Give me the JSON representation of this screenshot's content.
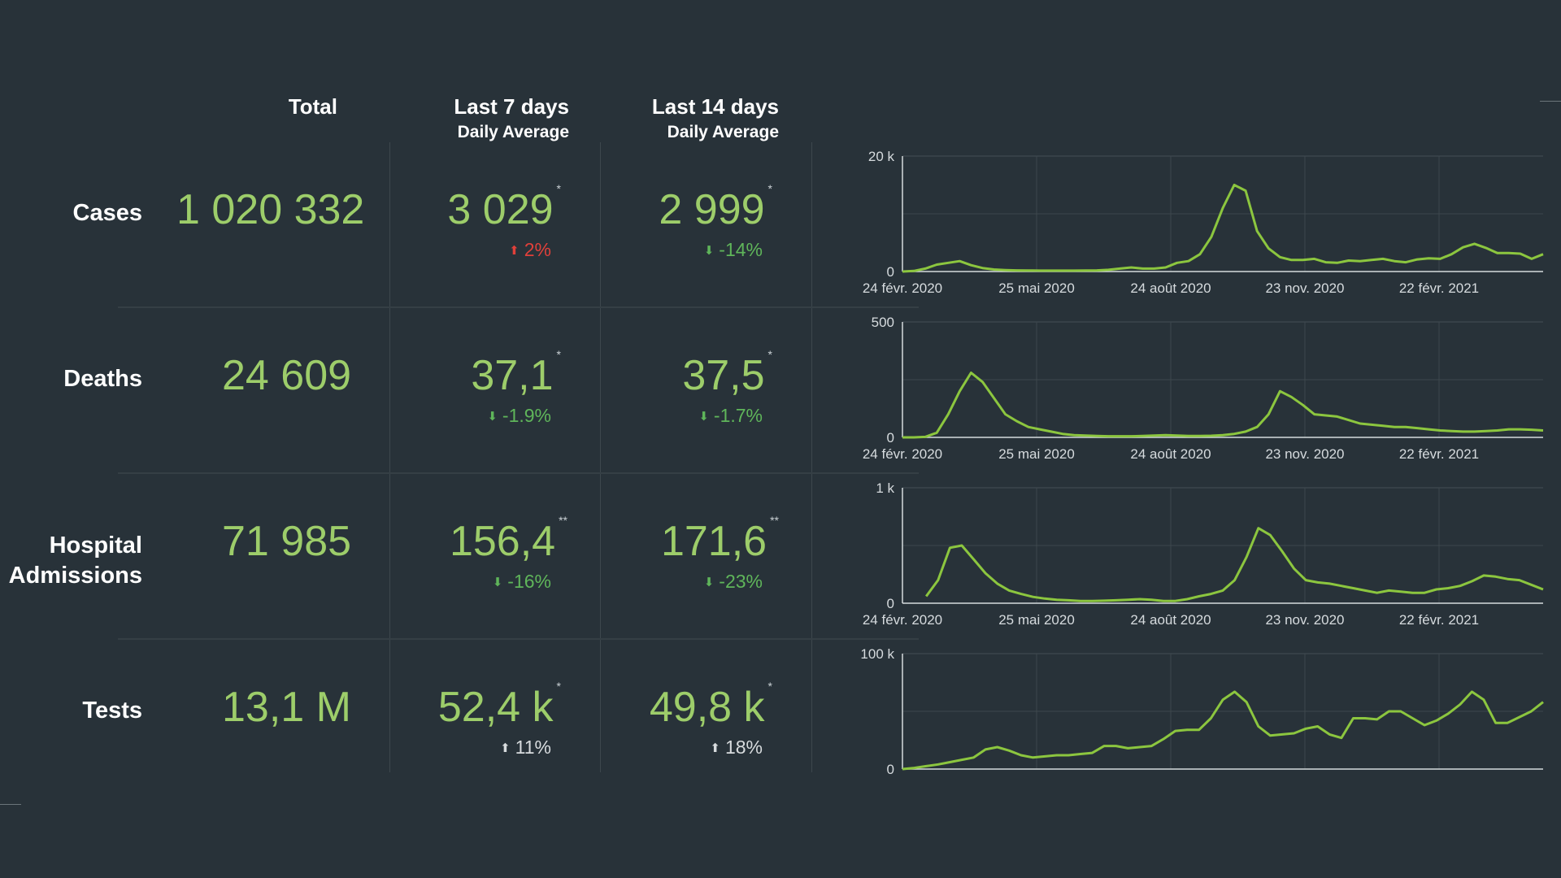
{
  "headers": {
    "total": "Total",
    "last7": "Last 7 days",
    "last7_sub": "Daily Average",
    "last14": "Last 14 days",
    "last14_sub": "Daily Average"
  },
  "rows": [
    {
      "label": "Cases",
      "total": "1 020 332",
      "avg7": "3 029",
      "avg7_star": "*",
      "chg7": "2%",
      "chg7_dir": "up",
      "chg7_color": "#e0403a",
      "avg14": "2 999",
      "avg14_star": "*",
      "chg14": "-14%",
      "chg14_dir": "down",
      "chg14_color": "#5fb55a"
    },
    {
      "label": "Deaths",
      "total": "24 609",
      "avg7": "37,1",
      "avg7_star": "*",
      "chg7": "-1.9%",
      "chg7_dir": "down",
      "chg7_color": "#5fb55a",
      "avg14": "37,5",
      "avg14_star": "*",
      "chg14": "-1.7%",
      "chg14_dir": "down",
      "chg14_color": "#5fb55a"
    },
    {
      "label_line1": "Hospital",
      "label_line2": "Admissions",
      "total": "71 985",
      "avg7": "156,4",
      "avg7_star": "**",
      "chg7": "-16%",
      "chg7_dir": "down",
      "chg7_color": "#5fb55a",
      "avg14": "171,6",
      "avg14_star": "**",
      "chg14": "-23%",
      "chg14_dir": "down",
      "chg14_color": "#5fb55a"
    },
    {
      "label": "Tests",
      "total": "13,1 M",
      "avg7": "52,4 k",
      "avg7_star": "*",
      "chg7": "11%",
      "chg7_dir": "up",
      "chg7_color": "#d8dcde",
      "avg14": "49,8 k",
      "avg14_star": "*",
      "chg14": "18%",
      "chg14_dir": "up",
      "chg14_color": "#d8dcde"
    }
  ],
  "icons": {
    "up": "arrow-up-icon",
    "down": "arrow-down-icon"
  },
  "colors": {
    "background": "#283239",
    "line": "#8cc63f",
    "value": "#9dcd6a"
  },
  "chart_data": [
    {
      "type": "line",
      "ylim": [
        0,
        20000
      ],
      "yticks": [
        "20 k",
        "0"
      ],
      "xticks": [
        "24 févr. 2020",
        "25 mai 2020",
        "24 août 2020",
        "23 nov. 2020",
        "22 févr. 2021"
      ],
      "series": [
        {
          "values": [
            0,
            100,
            500,
            1200,
            1500,
            1800,
            1100,
            600,
            350,
            250,
            200,
            180,
            150,
            150,
            150,
            150,
            180,
            200,
            300,
            500,
            700,
            500,
            500,
            700,
            1500,
            1800,
            3000,
            6000,
            11000,
            15000,
            14000,
            7000,
            4000,
            2500,
            2000,
            2000,
            2200,
            1600,
            1500,
            1900,
            1800,
            2000,
            2200,
            1800,
            1600,
            2100,
            2300,
            2200,
            3000,
            4200,
            4800,
            4100,
            3200,
            3200,
            3100,
            2200,
            3000
          ]
        }
      ]
    },
    {
      "type": "line",
      "ylim": [
        0,
        500
      ],
      "yticks": [
        "500",
        "0"
      ],
      "xticks": [
        "24 févr. 2020",
        "25 mai 2020",
        "24 août 2020",
        "23 nov. 2020",
        "22 févr. 2021"
      ],
      "series": [
        {
          "values": [
            0,
            0,
            2,
            20,
            100,
            200,
            280,
            240,
            170,
            100,
            70,
            45,
            35,
            25,
            15,
            10,
            8,
            6,
            5,
            5,
            5,
            6,
            8,
            10,
            8,
            6,
            6,
            7,
            10,
            15,
            25,
            45,
            100,
            200,
            175,
            140,
            100,
            95,
            90,
            75,
            60,
            55,
            50,
            45,
            45,
            40,
            35,
            30,
            27,
            25,
            25,
            27,
            30,
            35,
            35,
            33,
            30
          ]
        }
      ]
    },
    {
      "type": "line",
      "ylim": [
        0,
        1000
      ],
      "yticks": [
        "1 k",
        "0"
      ],
      "xticks": [
        "24 févr. 2020",
        "25 mai 2020",
        "24 août 2020",
        "23 nov. 2020",
        "22 févr. 2021"
      ],
      "series": [
        {
          "values": [
            null,
            null,
            60,
            200,
            480,
            500,
            380,
            260,
            170,
            110,
            80,
            55,
            40,
            30,
            25,
            20,
            20,
            22,
            25,
            30,
            35,
            30,
            20,
            20,
            35,
            60,
            80,
            110,
            200,
            400,
            650,
            590,
            450,
            300,
            200,
            180,
            170,
            150,
            130,
            110,
            90,
            110,
            100,
            90,
            90,
            120,
            130,
            150,
            190,
            240,
            230,
            210,
            200,
            160,
            120
          ]
        }
      ]
    }
  ],
  "chart_tests": {
    "type": "line",
    "ylim": [
      0,
      100000
    ],
    "yticks": [
      "100 k",
      "0"
    ],
    "series": [
      {
        "values": [
          0,
          1000,
          2500,
          4000,
          6000,
          8000,
          10000,
          17000,
          19000,
          16000,
          12000,
          10000,
          11000,
          12000,
          12000,
          13000,
          14000,
          20000,
          20000,
          18000,
          19000,
          20000,
          26000,
          33000,
          34000,
          34000,
          44000,
          60000,
          67000,
          58000,
          37000,
          29000,
          30000,
          31000,
          35000,
          37000,
          30000,
          27000,
          44000,
          44000,
          43000,
          50000,
          50000,
          44000,
          38000,
          42000,
          48000,
          56000,
          67000,
          60000,
          40000,
          40000,
          45000,
          50000,
          58000
        ]
      }
    ]
  }
}
